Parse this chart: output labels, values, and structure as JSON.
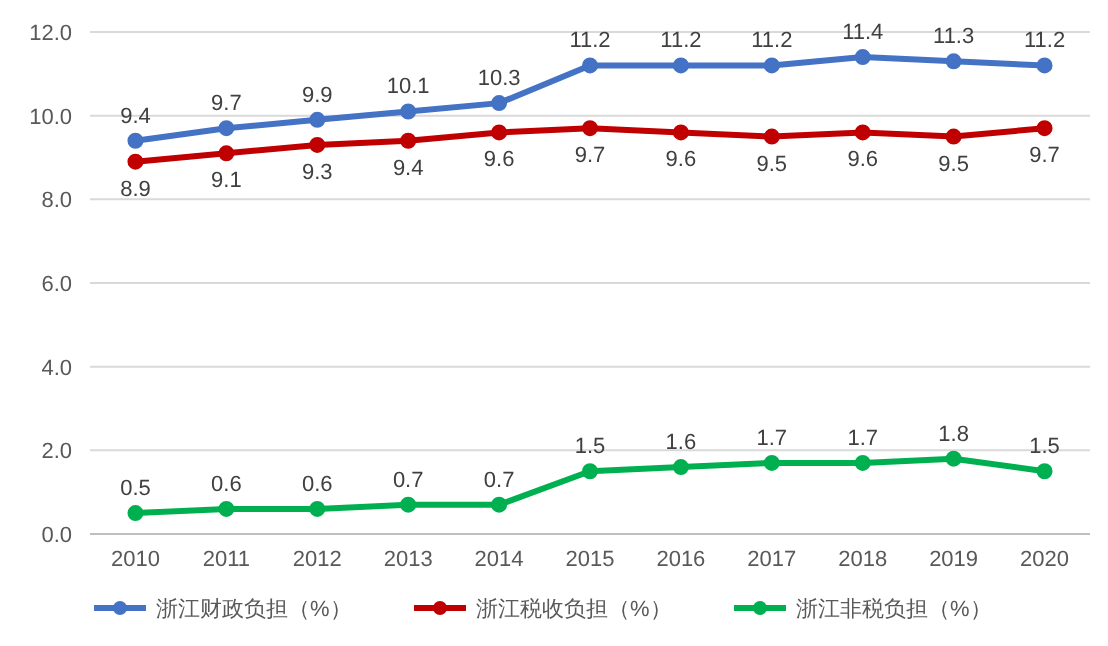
{
  "chart_data": {
    "type": "line",
    "categories": [
      "2010",
      "2011",
      "2012",
      "2013",
      "2014",
      "2015",
      "2016",
      "2017",
      "2018",
      "2019",
      "2020"
    ],
    "series": [
      {
        "name": "浙江财政负担（%）",
        "color": "#4472c4",
        "values": [
          9.4,
          9.7,
          9.9,
          10.1,
          10.3,
          11.2,
          11.2,
          11.2,
          11.4,
          11.3,
          11.2
        ]
      },
      {
        "name": "浙江税收负担（%）",
        "color": "#c00000",
        "values": [
          8.9,
          9.1,
          9.3,
          9.4,
          9.6,
          9.7,
          9.6,
          9.5,
          9.6,
          9.5,
          9.7
        ]
      },
      {
        "name": "浙江非税负担（%）",
        "color": "#00b050",
        "values": [
          0.5,
          0.6,
          0.6,
          0.7,
          0.7,
          1.5,
          1.6,
          1.7,
          1.7,
          1.8,
          1.5
        ]
      }
    ],
    "ylim": [
      0,
      12
    ],
    "yticks": [
      {
        "value": 0,
        "label": "0.0"
      },
      {
        "value": 2,
        "label": "2.0"
      },
      {
        "value": 4,
        "label": "4.0"
      },
      {
        "value": 6,
        "label": "6.0"
      },
      {
        "value": 8,
        "label": "8.0"
      },
      {
        "value": 10,
        "label": "10.0"
      },
      {
        "value": 12,
        "label": "12.0"
      }
    ],
    "grid": "y",
    "legend": "bottom",
    "marker": "circle",
    "line_style": "solid",
    "data_labels": true
  }
}
